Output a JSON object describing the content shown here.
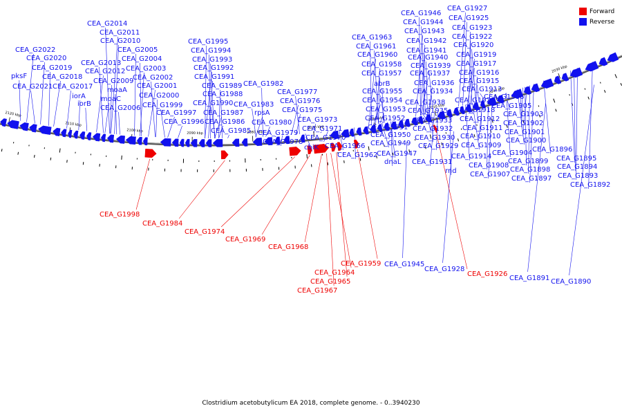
{
  "caption": "Clostridium acetobutylicum EA 2018, complete genome. - 0..3940230",
  "legend": [
    {
      "label": "Forward",
      "color": "#ee0000"
    },
    {
      "label": "Reverse",
      "color": "#1111ee"
    }
  ],
  "colors": {
    "forward": "#ee0000",
    "reverse": "#1111ee",
    "backbone": "#777777",
    "ticks": "#000000"
  },
  "scale": {
    "unit": "kbp",
    "ticks": [
      {
        "label": "2120 kbp"
      },
      {
        "label": "2110 kbp"
      },
      {
        "label": "2100 kbp"
      },
      {
        "label": "2090 kbp"
      },
      {
        "label": "2080 kbp"
      },
      {
        "label": "2070 kbp"
      },
      {
        "label": "2060 kbp"
      },
      {
        "label": "2050 kbp"
      },
      {
        "label": "2040 kbp"
      },
      {
        "label": "2030 kbp"
      }
    ]
  },
  "reverse_labels": [
    "CEA_G2022",
    "CEA_G2020",
    "CEA_G2019",
    "pksF",
    "CEA_G2021",
    "CEA_G2018",
    "CEA_G2017",
    "iorA",
    "iorB",
    "CEA_G2014",
    "CEA_G2011",
    "CEA_G2010",
    "CEA_G2005",
    "CEA_G2004",
    "CEA_G2013",
    "CEA_G2012",
    "CEA_G2003",
    "CEA_G2009",
    "moaA",
    "CEA_G2002",
    "CEA_G2001",
    "moaC",
    "CEA_G2000",
    "CEA_G2006",
    "CEA_G1999",
    "CEA_G1997",
    "CEA_G1996",
    "CEA_G1995",
    "CEA_G1994",
    "CEA_G1993",
    "CEA_G1992",
    "CEA_G1991",
    "CEA_G1989",
    "CEA_G1988",
    "CEA_G1990",
    "CEA_G1987",
    "CEA_G1986",
    "CEA_G1985",
    "CEA_G1982",
    "CEA_G1983",
    "rpsA",
    "CEA_G1980",
    "CEA_G1979",
    "CEA_G1978",
    "CEA_G1977",
    "CEA_G1976",
    "CEA_G1975",
    "CEA_G1973",
    "CEA_G1971",
    "CEA_G1970",
    "cbiK",
    "CEA_G1966",
    "CEA_G1962",
    "CEA_G1963",
    "CEA_G1961",
    "CEA_G1960",
    "CEA_G1958",
    "CEA_G1957",
    "abrB",
    "CEA_G1955",
    "CEA_G1954",
    "CEA_G1953",
    "CEA_G1952",
    "CEA_G1951",
    "CEA_G1950",
    "CEA_G1949",
    "CEA_G1947",
    "dnaL",
    "CEA_G1946",
    "CEA_G1944",
    "CEA_G1943",
    "CEA_G1942",
    "CEA_G1941",
    "CEA_G1940",
    "CEA_G1939",
    "CEA_G1937",
    "CEA_G1936",
    "CEA_G1934",
    "CEA_G1938",
    "CEA_G1935",
    "CEA_G1933",
    "CEA_G1932",
    "CEA_G1930",
    "CEA_G1929",
    "CEA_G1931",
    "CEA_G1927",
    "CEA_G1925",
    "CEA_G1923",
    "CEA_G1922",
    "CEA_G1920",
    "CEA_G1919",
    "CEA_G1917",
    "CEA_G1916",
    "CEA_G1915",
    "CEA_G1913",
    "CEA_G1921",
    "CEA_G1918",
    "CEA_G1912",
    "CEA_G1911",
    "CEA_G1910",
    "CEA_G1909",
    "CEA_G1914",
    "rnd",
    "CEA_G1908",
    "CEA_G1907",
    "CEA_G1906",
    "CEA_G1905",
    "CEA_G1903",
    "CEA_G1902",
    "CEA_G1901",
    "CEA_G1900",
    "CEA_G1904",
    "CEA_G1899",
    "CEA_G1898",
    "CEA_G1897",
    "CEA_G1896",
    "CEA_G1895",
    "CEA_G1894",
    "CEA_G1893",
    "CEA_G1892",
    "CEA_G1945",
    "CEA_G1928",
    "CEA_G1891",
    "CEA_G1890"
  ],
  "forward_labels": [
    "CEA_G1998",
    "CEA_G1984",
    "CEA_G1974",
    "CEA_G1969",
    "CEA_G1968",
    "CEA_G1964",
    "CEA_G1965",
    "CEA_G1967",
    "CEA_G1959",
    "CEA_G1926"
  ]
}
